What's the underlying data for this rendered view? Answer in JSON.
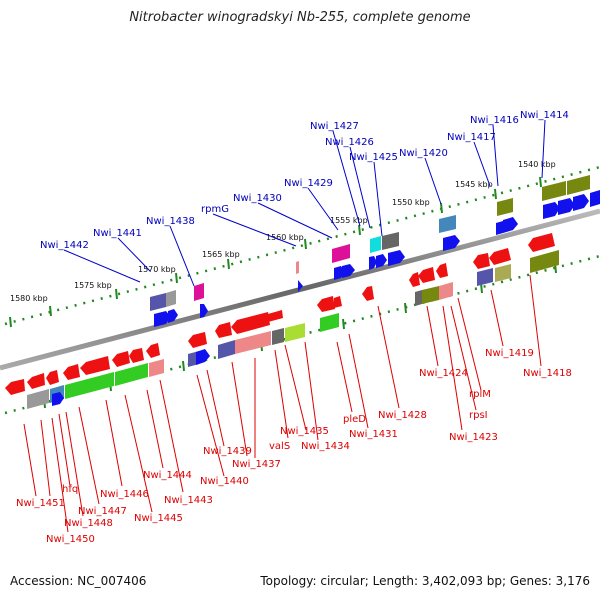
{
  "title": "Nitrobacter winogradskyi Nb-255, complete genome",
  "footer": {
    "accession": "Accession: NC_007406",
    "stats": "Topology: circular; Length: 3,402,093 bp; Genes: 3,176"
  },
  "scale_labels": [
    "1540 kbp",
    "1545 kbp",
    "1550 kbp",
    "1555 kbp",
    "1560 kbp",
    "1565 kbp",
    "1570 kbp",
    "1575 kbp",
    "1580 kbp"
  ],
  "top_labels": [
    "Nwi_1414",
    "Nwi_1416",
    "Nwi_1417",
    "Nwi_1420",
    "Nwi_1425",
    "Nwi_1426",
    "Nwi_1427",
    "Nwi_1429",
    "Nwi_1430",
    "rpmG",
    "Nwi_1438",
    "Nwi_1441",
    "Nwi_1442"
  ],
  "bottom_labels": [
    "Nwi_1418",
    "Nwi_1419",
    "rplM",
    "rpsI",
    "Nwi_1423",
    "Nwi_1424",
    "Nwi_1428",
    "Nwi_1431",
    "pleD",
    "Nwi_1434",
    "Nwi_1435",
    "valS",
    "Nwi_1437",
    "Nwi_1439",
    "Nwi_1440",
    "Nwi_1443",
    "Nwi_1444",
    "Nwi_1445",
    "Nwi_1446",
    "Nwi_1447",
    "Nwi_1448",
    "hfq",
    "Nwi_1450",
    "Nwi_1451"
  ],
  "colors": {
    "red": "#ee1111",
    "green": "#33cc22",
    "olive": "#778811",
    "blue": "#1111ee",
    "purple": "#5555aa",
    "gray": "#999999",
    "magenta": "#dd1199",
    "cyan": "#11dddd",
    "steel": "#4488bb",
    "pink": "#ee8888",
    "lime": "#aadd33",
    "khaki": "#aaaa55",
    "label_top": "#0000bb",
    "label_bottom": "#dd0000",
    "backbone": "#888888"
  }
}
